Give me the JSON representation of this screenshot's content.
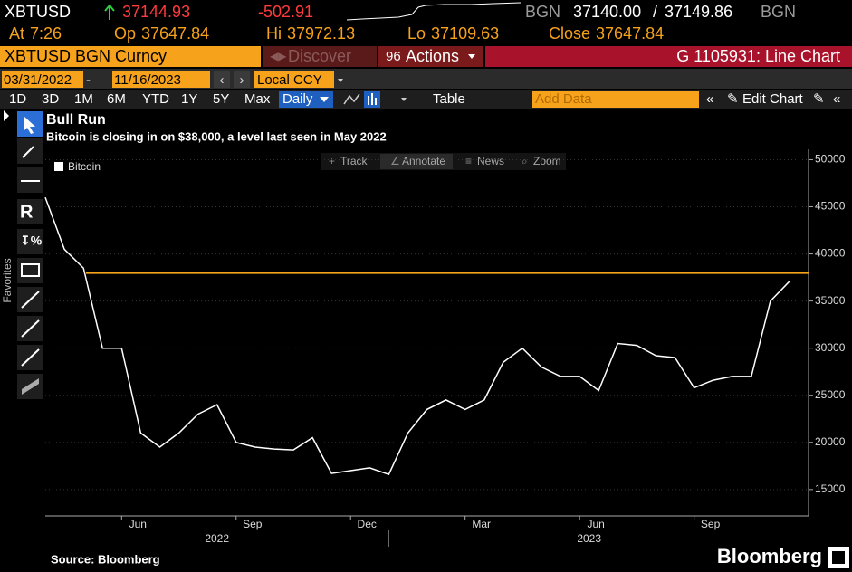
{
  "header": {
    "ticker": "XBTUSD",
    "last": "37144.93",
    "change": "-502.91",
    "source": "BGN",
    "bid": "37140.00",
    "ask": "37149.86",
    "source2": "BGN",
    "stats": [
      {
        "label": "At",
        "value": "7:26"
      },
      {
        "label": "Op",
        "value": "37647.84"
      },
      {
        "label": "Hi",
        "value": "37972.13"
      },
      {
        "label": "Lo",
        "value": "37109.63"
      },
      {
        "label": "Close",
        "value": "37647.84"
      }
    ]
  },
  "menu": {
    "security": "XBTUSD BGN Curncy",
    "discover": "Discover",
    "actions": "Actions",
    "function": "G 1105931: Line Chart"
  },
  "toolbar": {
    "start_date": "03/31/2022",
    "end_date": "11/16/2023",
    "currency": "Local CCY",
    "periods": [
      "1D",
      "3D",
      "1M",
      "6M",
      "YTD",
      "1Y",
      "5Y",
      "Max"
    ],
    "frequency": "Daily",
    "table": "Table",
    "add_data": "Add Data",
    "edit_chart": "Edit Chart"
  },
  "chart_tools": [
    "Track",
    "Annotate",
    "News",
    "Zoom"
  ],
  "sidebar_label": "Favorites",
  "chart_data": {
    "type": "line",
    "title": "Bull Run",
    "subtitle": "Bitcoin is closing in on $38,000, a level last seen in May 2022",
    "categories": [
      null,
      null,
      null,
      null,
      "Jun",
      null,
      null,
      null,
      null,
      null,
      "Sep",
      null,
      null,
      null,
      null,
      null,
      "Dec",
      null,
      null,
      null,
      null,
      null,
      "Mar",
      null,
      null,
      null,
      null,
      null,
      "Jun",
      null,
      null,
      null,
      null,
      null,
      "Sep",
      null,
      null,
      null,
      null,
      null
    ],
    "year_labels": [
      "2022",
      "2023"
    ],
    "series": [
      {
        "name": "Bitcoin",
        "color": "#ffffff",
        "values": [
          46000,
          40500,
          38500,
          30000,
          30000,
          21000,
          19500,
          21000,
          23000,
          24000,
          20000,
          19500,
          19300,
          19200,
          20500,
          16700,
          17000,
          17300,
          16600,
          21000,
          23500,
          24500,
          23500,
          24500,
          28500,
          30000,
          28000,
          27000,
          27000,
          25500,
          30500,
          30300,
          29200,
          29000,
          25800,
          26600,
          27000,
          27000,
          35000,
          37100
        ]
      }
    ],
    "hline": {
      "value": 38000,
      "color": "#f7a21b"
    },
    "ylim": [
      12200,
      51100
    ],
    "yticks": [
      15000,
      20000,
      25000,
      30000,
      35000,
      40000,
      45000,
      50000
    ],
    "source": "Source: Bloomberg",
    "brand": "Bloomberg"
  }
}
